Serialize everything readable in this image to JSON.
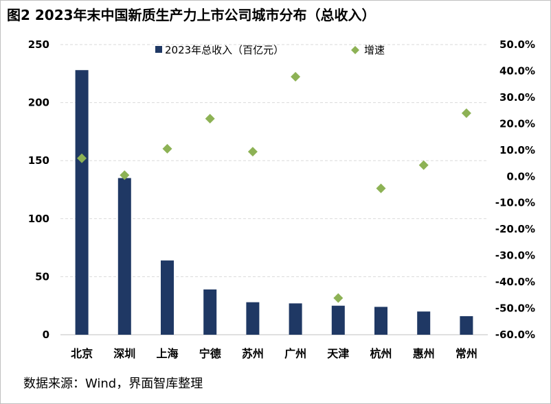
{
  "title": "图2 2023年末中国新质生产力上市公司城市分布（总收入）",
  "source": "数据来源：Wind，界面智库整理",
  "colors": {
    "bar": "#1f3864",
    "marker": "#8db255",
    "grid": "#d9d9d9"
  },
  "chart_data": {
    "type": "bar",
    "categories": [
      "北京",
      "深圳",
      "上海",
      "宁德",
      "苏州",
      "广州",
      "天津",
      "杭州",
      "惠州",
      "常州"
    ],
    "series": [
      {
        "name": "2023年总收入（百亿元）",
        "type": "bar",
        "axis": "left",
        "values": [
          228,
          135,
          64,
          39,
          28,
          27,
          25,
          24,
          20,
          16
        ]
      },
      {
        "name": "增速",
        "type": "scatter",
        "axis": "right",
        "marker": "diamond",
        "values": [
          6.9,
          0.5,
          10.5,
          21.9,
          9.4,
          37.8,
          -46.1,
          -4.5,
          4.3,
          24.0
        ]
      }
    ],
    "y_left": {
      "ylim": [
        0,
        250
      ],
      "ticks": [
        "0",
        "50",
        "100",
        "150",
        "200",
        "250"
      ]
    },
    "y_right": {
      "ylim": [
        -60,
        50
      ],
      "ticks": [
        "50.0%",
        "40.0%",
        "30.0%",
        "20.0%",
        "10.0%",
        "0.0%",
        "-10.0%",
        "-20.0%",
        "-30.0%",
        "-40.0%",
        "-50.0%",
        "-60.0%"
      ]
    },
    "grid": true,
    "legend_position": "top"
  }
}
